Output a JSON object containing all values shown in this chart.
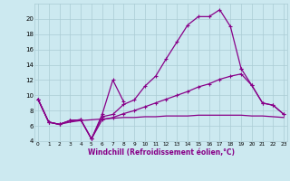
{
  "xlabel": "Windchill (Refroidissement éolien,°C)",
  "x": [
    0,
    1,
    2,
    3,
    4,
    5,
    6,
    7,
    8,
    9,
    10,
    11,
    12,
    13,
    14,
    15,
    16,
    17,
    18,
    19,
    20,
    21,
    22,
    23
  ],
  "line1_x": [
    0,
    1,
    2,
    3,
    4,
    5,
    6,
    7,
    8
  ],
  "line1_y": [
    9.5,
    6.5,
    6.2,
    6.7,
    6.8,
    4.3,
    7.5,
    12.0,
    9.2
  ],
  "line2_x": [
    0,
    1,
    2,
    3,
    4,
    5,
    6,
    7,
    8,
    9,
    10,
    11,
    12,
    13,
    14,
    15,
    16,
    17,
    18,
    19
  ],
  "line2_y": [
    9.5,
    6.5,
    6.2,
    6.7,
    6.8,
    4.3,
    7.2,
    7.5,
    8.8,
    9.4,
    11.2,
    12.5,
    14.8,
    17.0,
    19.2,
    20.3,
    20.3,
    21.2,
    19.0,
    13.5
  ],
  "line3_x": [
    19,
    20,
    21,
    22,
    23
  ],
  "line3_y": [
    13.5,
    11.3,
    9.0,
    8.7,
    7.5
  ],
  "line4_x": [
    0,
    1,
    2,
    3,
    4,
    5,
    6,
    7,
    8,
    9,
    10,
    11,
    12,
    13,
    14,
    15,
    16,
    17,
    18,
    19,
    20,
    21,
    22,
    23
  ],
  "line4_y": [
    9.5,
    6.5,
    6.2,
    6.7,
    6.8,
    4.3,
    6.8,
    7.1,
    7.6,
    8.0,
    8.5,
    9.0,
    9.5,
    10.0,
    10.5,
    11.1,
    11.5,
    12.1,
    12.5,
    12.8,
    11.3,
    9.0,
    8.7,
    7.5
  ],
  "line5_x": [
    0,
    1,
    2,
    3,
    4,
    5,
    6,
    7,
    8,
    9,
    10,
    11,
    12,
    13,
    14,
    15,
    16,
    17,
    18,
    19,
    20,
    21,
    22,
    23
  ],
  "line5_y": [
    9.5,
    6.5,
    6.2,
    6.5,
    6.7,
    6.8,
    6.9,
    7.0,
    7.1,
    7.1,
    7.2,
    7.2,
    7.3,
    7.3,
    7.3,
    7.4,
    7.4,
    7.4,
    7.4,
    7.4,
    7.3,
    7.3,
    7.2,
    7.1
  ],
  "ylim": [
    4,
    22
  ],
  "yticks": [
    4,
    6,
    8,
    10,
    12,
    14,
    16,
    18,
    20
  ],
  "bg_color": "#cce9f0",
  "grid_color": "#aaccd4",
  "line_color": "#880088",
  "markersize": 3.5
}
